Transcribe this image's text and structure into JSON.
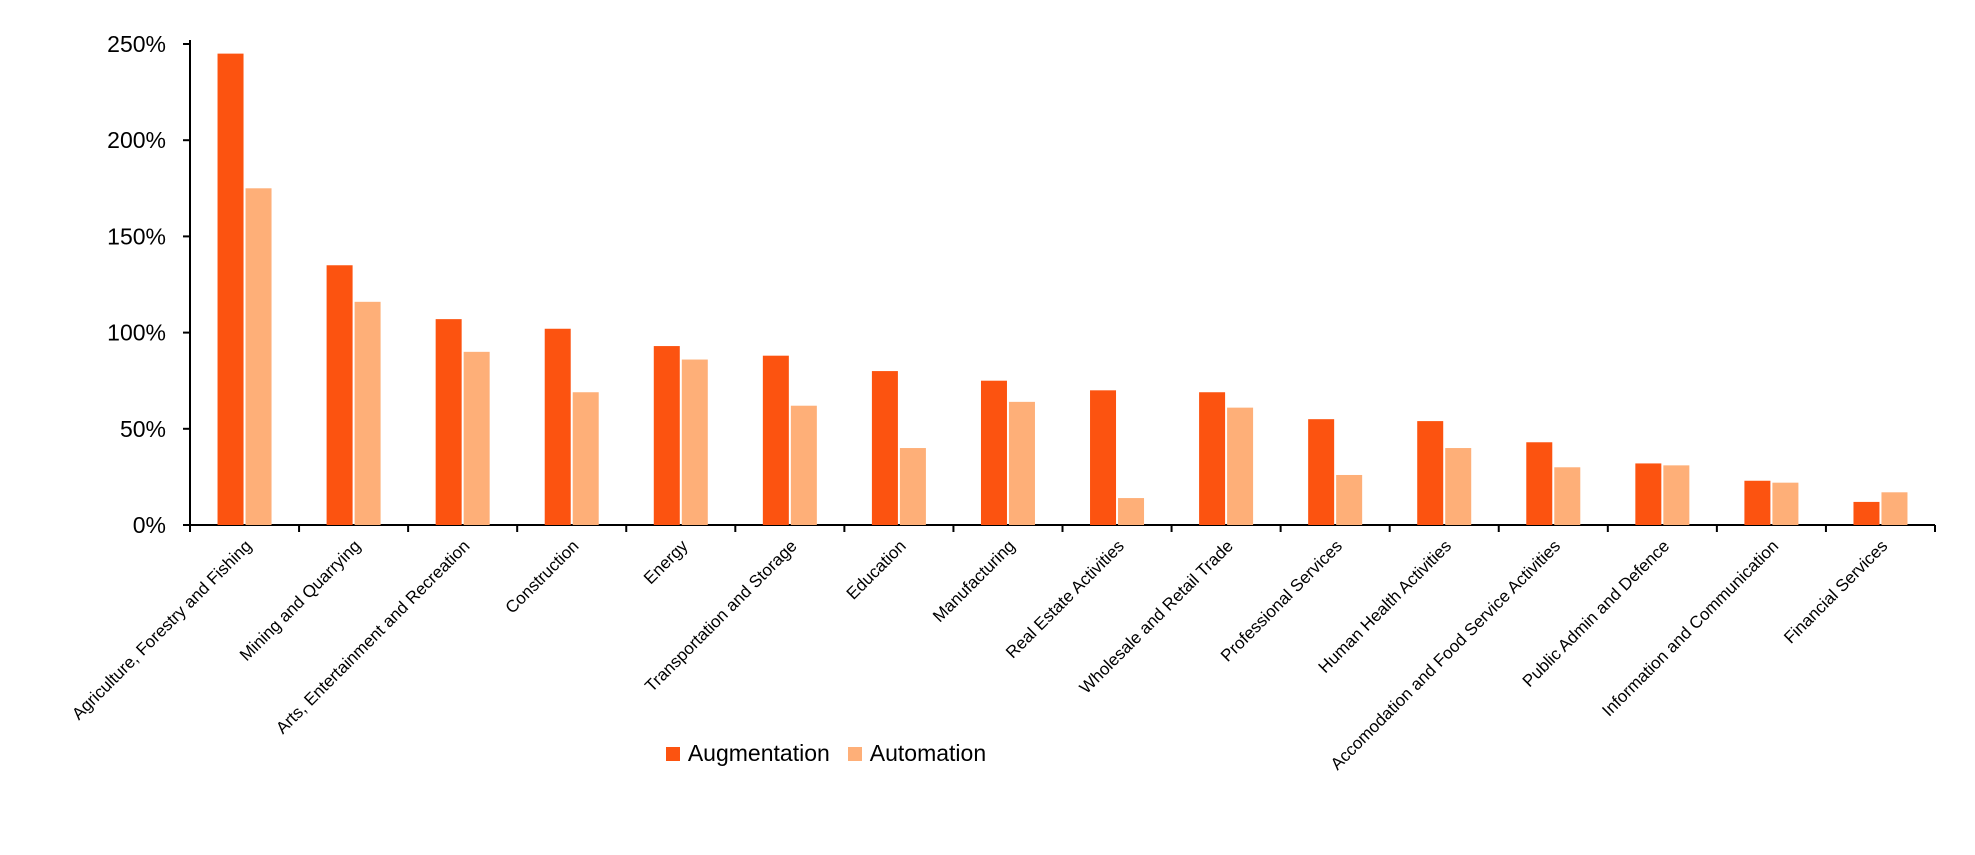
{
  "chart_data": {
    "type": "bar",
    "categories": [
      "Agriculture, Forestry and Fishing",
      "Mining and Quarrying",
      "Arts, Entertainment and Recreation",
      "Construction",
      "Energy",
      "Transportation and Storage",
      "Education",
      "Manufacturing",
      "Real Estate Activities",
      "Wholesale and Retail Trade",
      "Professional Services",
      "Human Health Activities",
      "Accomodation and Food Service Activities",
      "Public Admin and Defence",
      "Information and Communication",
      "Financial Services"
    ],
    "series": [
      {
        "name": "Augmentation",
        "color": "#FC5310",
        "values": [
          245,
          135,
          107,
          102,
          93,
          88,
          80,
          75,
          70,
          69,
          55,
          54,
          43,
          32,
          23,
          12
        ]
      },
      {
        "name": "Automation",
        "color": "#FEAF78",
        "values": [
          175,
          116,
          90,
          69,
          86,
          62,
          40,
          64,
          14,
          61,
          26,
          40,
          30,
          31,
          22,
          17
        ]
      }
    ],
    "yticks": [
      "0%",
      "50%",
      "100%",
      "150%",
      "200%",
      "250%"
    ],
    "ylim": [
      0,
      250
    ],
    "grid": false,
    "legend_position": "bottom"
  }
}
